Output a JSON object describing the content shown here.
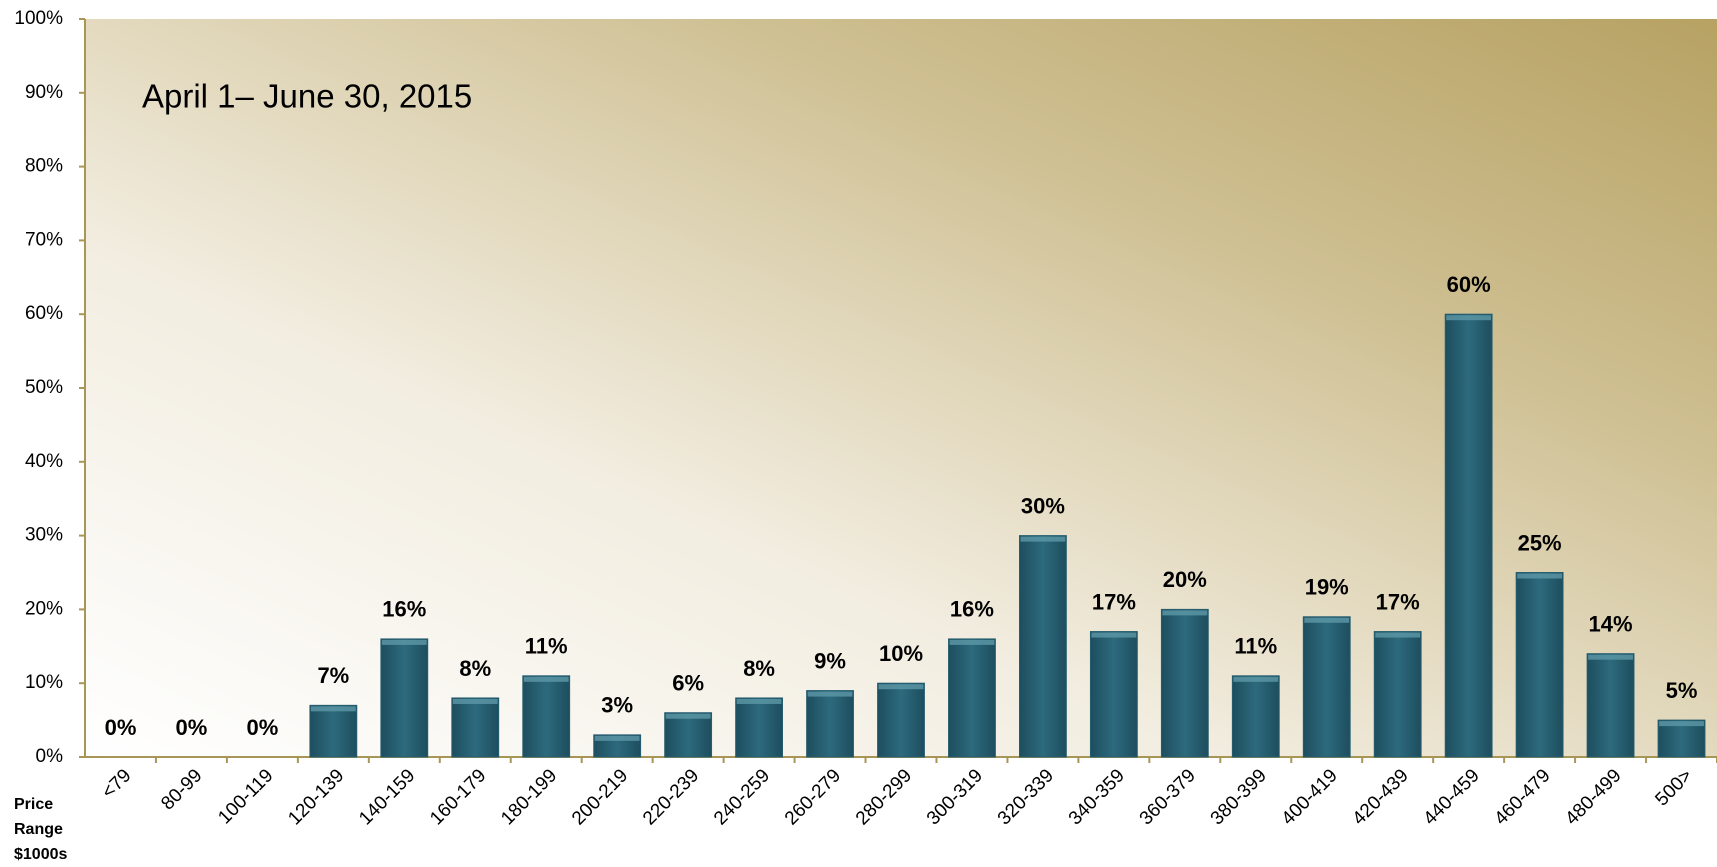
{
  "chart_data": {
    "type": "bar",
    "annotation": "April 1– June 30, 2015",
    "x_label": "Price Range $1000s",
    "categories": [
      "<79",
      "80-99",
      "100-119",
      "120-139",
      "140-159",
      "160-179",
      "180-199",
      "200-219",
      "220-239",
      "240-259",
      "260-279",
      "280-299",
      "300-319",
      "320-339",
      "340-359",
      "360-379",
      "380-399",
      "400-419",
      "420-439",
      "440-459",
      "460-479",
      "480-499",
      "500>"
    ],
    "values": [
      0,
      0,
      0,
      7,
      16,
      8,
      11,
      3,
      6,
      8,
      9,
      10,
      16,
      30,
      17,
      20,
      11,
      19,
      17,
      60,
      25,
      14,
      5
    ],
    "value_labels": [
      "0%",
      "0%",
      "0%",
      "7%",
      "16%",
      "8%",
      "11%",
      "3%",
      "6%",
      "8%",
      "9%",
      "10%",
      "16%",
      "30%",
      "17%",
      "20%",
      "11%",
      "19%",
      "17%",
      "60%",
      "25%",
      "14%",
      "5%"
    ],
    "color": "#265e70",
    "ylim": [
      0,
      100
    ],
    "yticks": [
      {
        "value": 0,
        "label": "0%"
      },
      {
        "value": 10,
        "label": "10%"
      },
      {
        "value": 20,
        "label": "20%"
      },
      {
        "value": 30,
        "label": "30%"
      },
      {
        "value": 40,
        "label": "40%"
      },
      {
        "value": 50,
        "label": "50%"
      },
      {
        "value": 60,
        "label": "60%"
      },
      {
        "value": 70,
        "label": "70%"
      },
      {
        "value": 80,
        "label": "80%"
      },
      {
        "value": 90,
        "label": "90%"
      },
      {
        "value": 100,
        "label": "100%"
      }
    ],
    "grid": false
  }
}
